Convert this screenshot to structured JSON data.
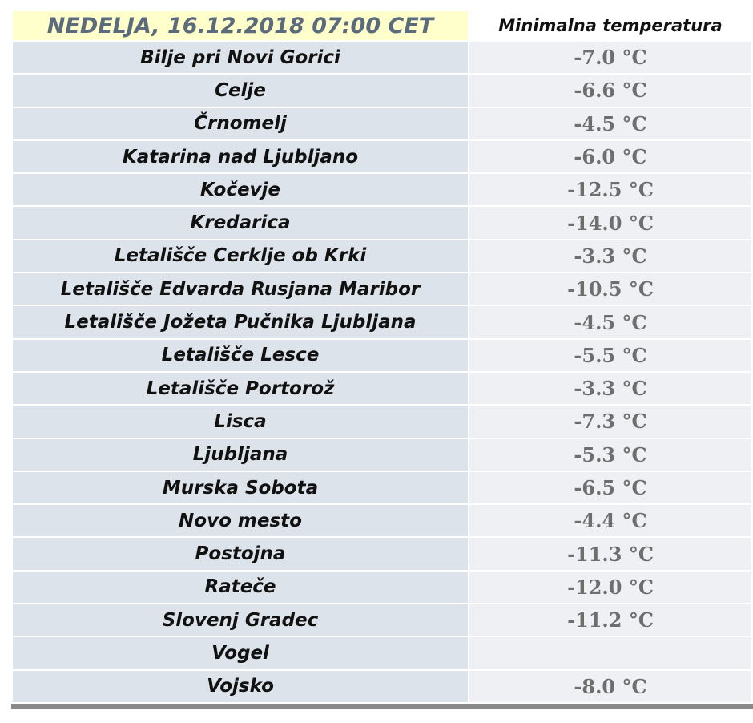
{
  "table": {
    "header": [
      "NEDELJA, 16.12.2018 07:00 CET",
      "Minimalna temperatura"
    ],
    "rows": [
      [
        "Bilje pri Novi Gorici",
        "-7.0 °C"
      ],
      [
        "Celje",
        "-6.6 °C"
      ],
      [
        "Črnomelj",
        "-4.5 °C"
      ],
      [
        "Katarina nad Ljubljano",
        "-6.0 °C"
      ],
      [
        "Kočevje",
        "-12.5 °C"
      ],
      [
        "Kredarica",
        "-14.0 °C"
      ],
      [
        "Letališče Cerklje ob Krki",
        "-3.3 °C"
      ],
      [
        "Letališče Edvarda Rusjana Maribor",
        "-10.5 °C"
      ],
      [
        "Letališče Jožeta Pučnika Ljubljana",
        "-4.5 °C"
      ],
      [
        "Letališče Lesce",
        "-5.5 °C"
      ],
      [
        "Letališče Portorož",
        "-3.3 °C"
      ],
      [
        "Lisca",
        "-7.3 °C"
      ],
      [
        "Ljubljana",
        "-5.3 °C"
      ],
      [
        "Murska Sobota",
        "-6.5 °C"
      ],
      [
        "Novo mesto",
        "-4.4 °C"
      ],
      [
        "Postojna",
        "-11.3 °C"
      ],
      [
        "Rateče",
        "-12.0 °C"
      ],
      [
        "Slovenj Gradec",
        "-11.2 °C"
      ],
      [
        "Vogel",
        null
      ],
      [
        "Vojsko",
        "-8.0 °C"
      ]
    ]
  }
}
